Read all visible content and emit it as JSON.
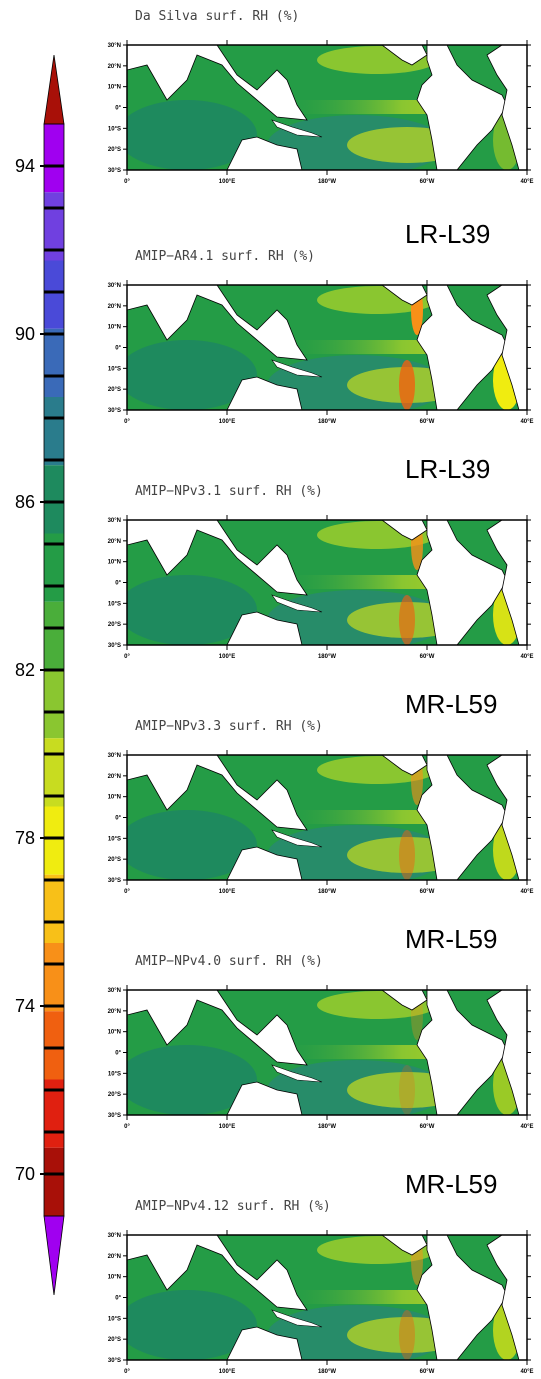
{
  "colorbar": {
    "lim": [
      69,
      95
    ],
    "ticks": [
      94,
      90,
      86,
      82,
      78,
      74,
      70
    ],
    "colors": [
      "#a000f0",
      "#7040e0",
      "#4a4ad8",
      "#3a6ab8",
      "#2a7c8c",
      "#1e8a5e",
      "#249c46",
      "#4aae3a",
      "#8ac630",
      "#c8dc20",
      "#f0ec10",
      "#f8c018",
      "#f89018",
      "#f06010",
      "#e02010",
      "#a81008"
    ]
  },
  "map_axes": {
    "lat_labels": [
      "30°N",
      "20°N",
      "10°N",
      "0°",
      "10°S",
      "20°S",
      "30°S"
    ],
    "lon_labels": [
      "0°",
      "100°E",
      "180°W",
      "60°W",
      "40°E"
    ]
  },
  "panels": [
    {
      "title": "Da Silva surf. RH (%)"
    },
    {
      "title": "AMIP−AR4.1 surf. RH (%)",
      "label": "LR-L39"
    },
    {
      "title": "AMIP−NPv3.1 surf. RH (%)",
      "label": "LR-L39"
    },
    {
      "title": "AMIP−NPv3.3 surf. RH (%)",
      "label": "MR-L59"
    },
    {
      "title": "AMIP−NPv4.0 surf. RH (%)",
      "label": "MR-L59"
    },
    {
      "title": "AMIP−NPv4.12 surf. RH (%)",
      "label": "MR-L59"
    }
  ]
}
